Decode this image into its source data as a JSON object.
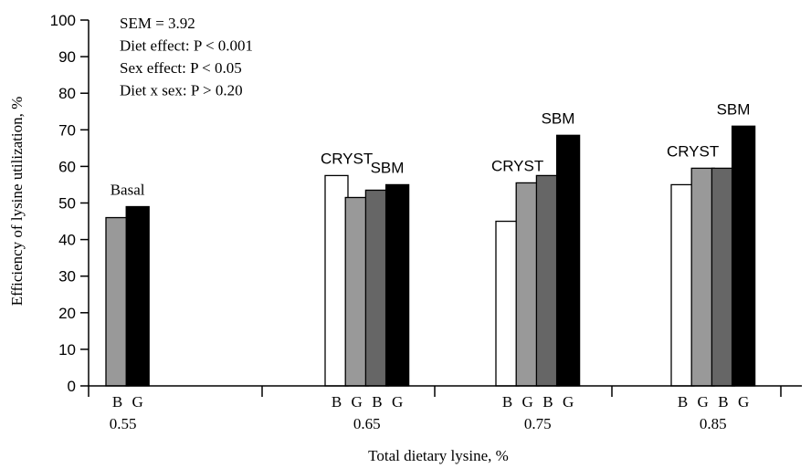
{
  "chart_data": {
    "type": "bar",
    "xlabel": "Total dietary lysine, %",
    "ylabel": "Efficiency of lysine utilization, %",
    "ylim": [
      0,
      100
    ],
    "yticks": [
      0,
      10,
      20,
      30,
      40,
      50,
      60,
      70,
      80,
      90,
      100
    ],
    "grid": false,
    "stats": [
      "SEM = 3.92",
      "Diet effect: P < 0.001",
      "Sex effect: P < 0.05",
      "Diet x sex: P > 0.20"
    ],
    "groups": [
      {
        "level": "0.55",
        "bars": [
          {
            "sex": "B",
            "value": 46,
            "color": "#999999"
          },
          {
            "sex": "G",
            "value": 49,
            "color": "#000000"
          }
        ],
        "labels": [
          {
            "text": "Basal",
            "over_bars": [
              0,
              1
            ]
          }
        ]
      },
      {
        "level": "0.65",
        "bars": [
          {
            "sex": "B",
            "value": 57.5,
            "color": "#ffffff"
          },
          {
            "sex": "G",
            "value": 51.5,
            "color": "#999999"
          },
          {
            "sex": "B",
            "value": 53.5,
            "color": "#666666"
          },
          {
            "sex": "G",
            "value": 55,
            "color": "#000000"
          }
        ],
        "labels": [
          {
            "text": "CRYST",
            "over_bars": [
              0,
              1
            ]
          },
          {
            "text": "SBM",
            "over_bars": [
              2,
              3
            ]
          }
        ]
      },
      {
        "level": "0.75",
        "bars": [
          {
            "sex": "B",
            "value": 45,
            "color": "#ffffff"
          },
          {
            "sex": "G",
            "value": 55.5,
            "color": "#999999"
          },
          {
            "sex": "B",
            "value": 57.5,
            "color": "#666666"
          },
          {
            "sex": "G",
            "value": 68.5,
            "color": "#000000"
          }
        ],
        "labels": [
          {
            "text": "CRYST",
            "over_bars": [
              0,
              1
            ]
          },
          {
            "text": "SBM",
            "over_bars": [
              2,
              3
            ]
          }
        ]
      },
      {
        "level": "0.85",
        "bars": [
          {
            "sex": "B",
            "value": 55,
            "color": "#ffffff"
          },
          {
            "sex": "G",
            "value": 59.5,
            "color": "#999999"
          },
          {
            "sex": "B",
            "value": 59.5,
            "color": "#666666"
          },
          {
            "sex": "G",
            "value": 71,
            "color": "#000000"
          }
        ],
        "labels": [
          {
            "text": "CRYST",
            "over_bars": [
              0,
              1
            ]
          },
          {
            "text": "SBM",
            "over_bars": [
              2,
              3
            ]
          }
        ]
      }
    ]
  }
}
